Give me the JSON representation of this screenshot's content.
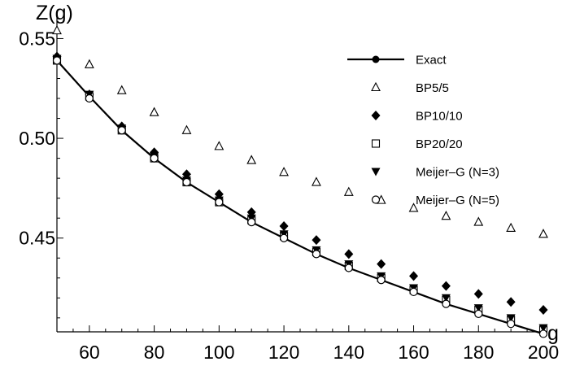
{
  "chart_data": {
    "type": "line",
    "xlabel": "g",
    "ylabel": "Z(g)",
    "xlim": [
      50,
      200
    ],
    "ylim": [
      0.403,
      0.562
    ],
    "x_ticks": [
      60,
      80,
      100,
      120,
      140,
      160,
      180,
      200
    ],
    "y_ticks": [
      0.45,
      0.5,
      0.55
    ],
    "x_tick_labels": [
      "60",
      "80",
      "100",
      "120",
      "140",
      "160",
      "180",
      "200"
    ],
    "y_tick_labels": [
      "0.45",
      "0.50",
      "0.55"
    ],
    "grid": false,
    "legend_position": "top-right",
    "series": [
      {
        "name": "Exact",
        "marker": "filled-circle",
        "line": true,
        "x": [
          50,
          60,
          70,
          80,
          90,
          100,
          110,
          120,
          130,
          140,
          150,
          160,
          170,
          180,
          190,
          200
        ],
        "y": [
          0.539,
          0.521,
          0.504,
          0.49,
          0.478,
          0.468,
          0.458,
          0.45,
          0.442,
          0.435,
          0.429,
          0.423,
          0.417,
          0.412,
          0.407,
          0.402
        ]
      },
      {
        "name": "BP5/5",
        "marker": "open-triangle",
        "line": false,
        "x": [
          50,
          60,
          70,
          80,
          90,
          100,
          110,
          120,
          130,
          140,
          150,
          160,
          170,
          180,
          190,
          200
        ],
        "y": [
          0.554,
          0.537,
          0.524,
          0.513,
          0.504,
          0.496,
          0.489,
          0.483,
          0.478,
          0.473,
          0.469,
          0.465,
          0.461,
          0.458,
          0.455,
          0.452
        ]
      },
      {
        "name": "BP10/10",
        "marker": "filled-diamond",
        "line": false,
        "x": [
          50,
          60,
          70,
          80,
          90,
          100,
          110,
          120,
          130,
          140,
          150,
          160,
          170,
          180,
          190,
          200
        ],
        "y": [
          0.541,
          0.522,
          0.506,
          0.493,
          0.482,
          0.472,
          0.463,
          0.456,
          0.449,
          0.442,
          0.437,
          0.431,
          0.426,
          0.422,
          0.418,
          0.414
        ]
      },
      {
        "name": "BP20/20",
        "marker": "open-square",
        "line": false,
        "x": [
          50,
          60,
          70,
          80,
          90,
          100,
          110,
          120,
          130,
          140,
          150,
          160,
          170,
          180,
          190,
          200
        ],
        "y": [
          0.539,
          0.521,
          0.504,
          0.49,
          0.478,
          0.468,
          0.459,
          0.451,
          0.443,
          0.436,
          0.43,
          0.424,
          0.419,
          0.414,
          0.409,
          0.404
        ]
      },
      {
        "name": "Meijer–G (N=3)",
        "marker": "filled-down-triangle",
        "line": false,
        "x": [
          50,
          60,
          70,
          80,
          90,
          100,
          110,
          120,
          130,
          140,
          150,
          160,
          170,
          180,
          190,
          200
        ],
        "y": [
          0.54,
          0.522,
          0.505,
          0.491,
          0.479,
          0.469,
          0.46,
          0.452,
          0.444,
          0.437,
          0.431,
          0.425,
          0.42,
          0.415,
          0.41,
          0.405
        ]
      },
      {
        "name": "Meijer–G (N=5)",
        "marker": "open-circle",
        "line": false,
        "x": [
          50,
          60,
          70,
          80,
          90,
          100,
          110,
          120,
          130,
          140,
          150,
          160,
          170,
          180,
          190,
          200
        ],
        "y": [
          0.539,
          0.52,
          0.504,
          0.49,
          0.478,
          0.468,
          0.458,
          0.45,
          0.442,
          0.435,
          0.429,
          0.423,
          0.417,
          0.412,
          0.407,
          0.402
        ]
      }
    ]
  }
}
